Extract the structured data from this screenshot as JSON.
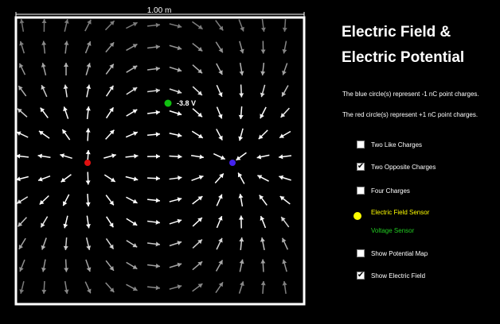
{
  "simulation": {
    "scale_label": "1.00 m",
    "voltage_readout": "-3.8 V",
    "colors": {
      "background": "#000000",
      "border": "#ffffff",
      "positive_charge": "#e01010",
      "negative_charge": "#4422ee",
      "voltage_probe": "#10c010",
      "strong_arrow": "#ffffff",
      "weak_arrow": "#555555"
    }
  },
  "controls": {
    "title_line1": "Electric Field &",
    "title_line2": "Electric Potential",
    "blue_info": "The blue circle(s) represent   -1 nC point charges.",
    "red_info": "The red circle(s) represent   +1 nC point charges.",
    "options": [
      {
        "label": "Two Like Charges",
        "checked": false
      },
      {
        "label": "Two Opposite Charges",
        "checked": true
      },
      {
        "label": "Four Charges",
        "checked": false
      },
      {
        "label": "Show Potential Map",
        "checked": false
      },
      {
        "label": "Show Electric Field",
        "checked": true
      }
    ],
    "check_mark": "✔",
    "efield_sensor_label": "Electric Field Sensor",
    "efield_sensor_color": "#ffff00",
    "voltage_sensor_label": "Voltage Sensor",
    "voltage_sensor_color": "#22cc22"
  }
}
